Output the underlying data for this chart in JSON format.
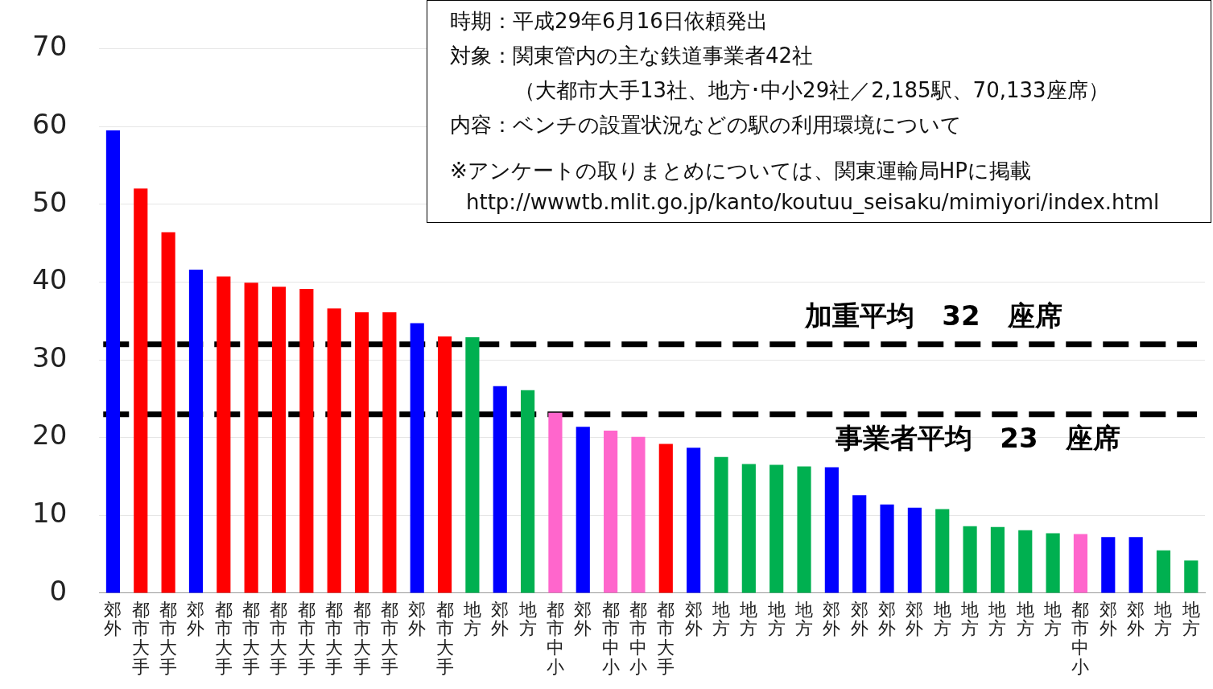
{
  "chart_data": {
    "type": "bar",
    "categories": [
      "郊外",
      "都市大手",
      "都市大手",
      "郊外",
      "都市大手",
      "都市大手",
      "都市大手",
      "都市大手",
      "都市大手",
      "都市大手",
      "都市大手",
      "郊外",
      "都市大手",
      "地方",
      "郊外",
      "地方",
      "都市中小",
      "郊外",
      "都市中小",
      "都市中小",
      "都市大手",
      "郊外",
      "地方",
      "地方",
      "地方",
      "地方",
      "郊外",
      "郊外",
      "郊外",
      "郊外",
      "地方",
      "地方",
      "地方",
      "地方",
      "地方",
      "都市中小",
      "郊外",
      "郊外",
      "地方",
      "地方"
    ],
    "values": [
      59.5,
      52.0,
      46.4,
      41.6,
      40.7,
      39.9,
      39.4,
      39.1,
      36.6,
      36.1,
      36.1,
      34.7,
      33.0,
      32.9,
      26.6,
      26.1,
      23.2,
      21.4,
      20.9,
      20.1,
      19.2,
      18.7,
      17.5,
      16.6,
      16.5,
      16.3,
      16.2,
      12.6,
      11.4,
      11.0,
      10.8,
      8.6,
      8.5,
      8.1,
      7.7,
      7.6,
      7.2,
      7.2,
      5.5,
      4.2
    ],
    "colors": [
      "#0000ff",
      "#ff0000",
      "#ff0000",
      "#0000ff",
      "#ff0000",
      "#ff0000",
      "#ff0000",
      "#ff0000",
      "#ff0000",
      "#ff0000",
      "#ff0000",
      "#0000ff",
      "#ff0000",
      "#00b050",
      "#0000ff",
      "#00b050",
      "#ff66cc",
      "#0000ff",
      "#ff66cc",
      "#ff66cc",
      "#ff0000",
      "#0000ff",
      "#00b050",
      "#00b050",
      "#00b050",
      "#00b050",
      "#0000ff",
      "#0000ff",
      "#0000ff",
      "#0000ff",
      "#00b050",
      "#00b050",
      "#00b050",
      "#00b050",
      "#00b050",
      "#ff66cc",
      "#0000ff",
      "#0000ff",
      "#00b050",
      "#00b050"
    ],
    "ylim": [
      0,
      70
    ],
    "yticks": [
      0,
      10,
      20,
      30,
      40,
      50,
      60,
      70
    ],
    "grid": "y",
    "ref_lines": [
      {
        "axis": "y",
        "value": 32,
        "label": "加重平均　32　座席",
        "color": "#000000",
        "line_style": "dashed"
      },
      {
        "axis": "y",
        "value": 23,
        "label": "事業者平均　23　座席",
        "color": "#000000",
        "line_style": "dashed"
      }
    ],
    "annotations": [
      "時期：平成29年6月16日依頼発出",
      "対象：関東管内の主な鉄道事業者42社",
      "（大都市大手13社、地方･中小29社／2,185駅、70,133座席）",
      "内容：ベンチの設置状況などの駅の利用環境について",
      "※アンケートの取りまとめについては、関東運輸局HPに掲載",
      "http://wwwtb.mlit.go.jp/kanto/koutuu_seisaku/mimiyori/index.html"
    ]
  }
}
